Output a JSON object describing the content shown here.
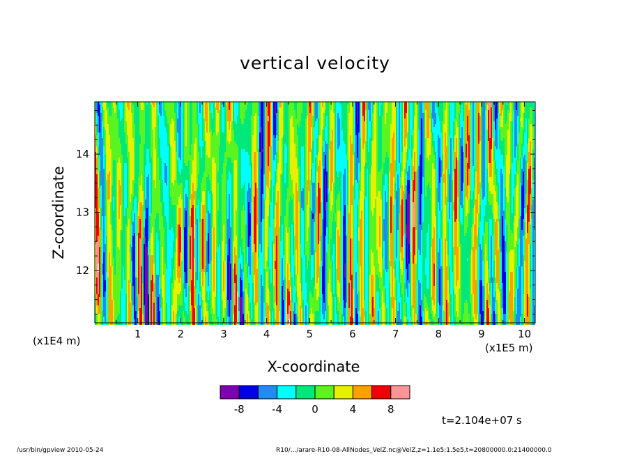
{
  "chart_data": {
    "type": "heatmap",
    "title": "vertical velocity",
    "xlabel": "X-coordinate",
    "ylabel": "Z-coordinate",
    "x_multiplier": "(x1E5 m)",
    "y_multiplier": "(x1E4 m)",
    "xlim": [
      0,
      10.25
    ],
    "ylim": [
      11.1,
      14.9
    ],
    "x_ticks": [
      1,
      2,
      3,
      4,
      5,
      6,
      7,
      8,
      9,
      10
    ],
    "y_ticks": [
      12,
      13,
      14
    ],
    "colorbar": {
      "levels": [
        -10,
        -8,
        -6,
        -4,
        -2,
        0,
        2,
        4,
        6,
        8,
        10
      ],
      "tick_labels": [
        "-8",
        "-4",
        "0",
        "4",
        "8"
      ],
      "tick_values": [
        -8,
        -4,
        0,
        4,
        8
      ],
      "colors": [
        "#8000b0",
        "#0000e6",
        "#1e8cf0",
        "#00ffff",
        "#00e87a",
        "#5af520",
        "#e6f000",
        "#ffa000",
        "#f00000",
        "#ff9494"
      ]
    }
  },
  "time_label": "t=2.104e+07 s",
  "footer_left": "/usr/bin/gpview   2010-05-24",
  "footer_right": "R10/.../arare-R10-08-AllNodes_VelZ.nc@VelZ,z=1.1e5:1.5e5,t=20800000.0:21400000.0"
}
